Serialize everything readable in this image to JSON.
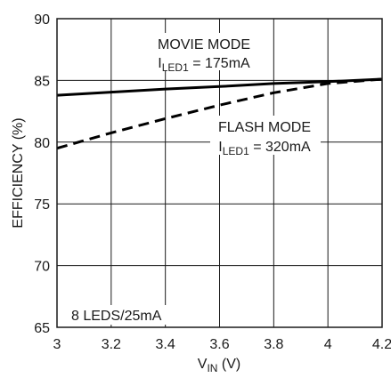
{
  "chart_data": {
    "type": "line",
    "xlabel": {
      "main": "V",
      "sub": "IN",
      "tail": " (V)"
    },
    "ylabel": "EFFICIENCY (%)",
    "xlim": [
      3,
      4.2
    ],
    "ylim": [
      65,
      90
    ],
    "x_ticks": [
      "3",
      "3.2",
      "3.4",
      "3.6",
      "3.8",
      "4",
      "4.2"
    ],
    "y_ticks": [
      "65",
      "70",
      "75",
      "80",
      "85",
      "90"
    ],
    "x_tick_values": [
      3,
      3.2,
      3.4,
      3.6,
      3.8,
      4,
      4.2
    ],
    "y_tick_values": [
      65,
      70,
      75,
      80,
      85,
      90
    ],
    "grid": true,
    "series": [
      {
        "style": "solid",
        "x": [
          3.0,
          3.2,
          3.4,
          3.6,
          3.8,
          4.0,
          4.2
        ],
        "y": [
          83.8,
          84.05,
          84.3,
          84.5,
          84.75,
          84.9,
          85.1
        ]
      },
      {
        "style": "dashed",
        "x": [
          3.0,
          3.2,
          3.4,
          3.6,
          3.8,
          4.0,
          4.2
        ],
        "y": [
          79.5,
          80.75,
          81.9,
          83.0,
          84.0,
          84.75,
          85.1
        ]
      }
    ],
    "annotations": {
      "movie_title": "MOVIE MODE",
      "movie_current": {
        "main": "I",
        "sub": "LED1",
        "tail": " = 175mA"
      },
      "flash_title": "FLASH MODE",
      "flash_current": {
        "main": "I",
        "sub": "LED1",
        "tail": " = 320mA"
      },
      "note": "8 LEDS/25mA"
    }
  }
}
